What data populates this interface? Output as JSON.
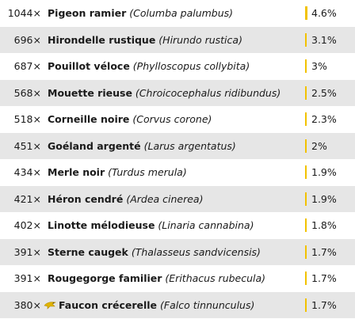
{
  "rows": [
    {
      "count": "1044×",
      "common": "Pigeon ramier",
      "latin": "(Columba palumbus)",
      "pct": "4.6%",
      "share": 0.046,
      "icon": ""
    },
    {
      "count": "696×",
      "common": "Hirondelle rustique",
      "latin": "(Hirundo rustica)",
      "pct": "3.1%",
      "share": 0.031,
      "icon": ""
    },
    {
      "count": "687×",
      "common": "Pouillot véloce",
      "latin": "(Phylloscopus collybita)",
      "pct": "3%",
      "share": 0.03,
      "icon": ""
    },
    {
      "count": "568×",
      "common": "Mouette rieuse",
      "latin": "(Chroicocephalus ridibundus)",
      "pct": "2.5%",
      "share": 0.025,
      "icon": ""
    },
    {
      "count": "518×",
      "common": "Corneille noire",
      "latin": "(Corvus corone)",
      "pct": "2.3%",
      "share": 0.023,
      "icon": ""
    },
    {
      "count": "451×",
      "common": "Goéland argenté",
      "latin": "(Larus argentatus)",
      "pct": "2%",
      "share": 0.02,
      "icon": ""
    },
    {
      "count": "434×",
      "common": "Merle noir",
      "latin": "(Turdus merula)",
      "pct": "1.9%",
      "share": 0.019,
      "icon": ""
    },
    {
      "count": "421×",
      "common": "Héron cendré",
      "latin": "(Ardea cinerea)",
      "pct": "1.9%",
      "share": 0.019,
      "icon": ""
    },
    {
      "count": "402×",
      "common": "Linotte mélodieuse",
      "latin": "(Linaria cannabina)",
      "pct": "1.8%",
      "share": 0.018,
      "icon": ""
    },
    {
      "count": "391×",
      "common": "Sterne caugek",
      "latin": "(Thalasseus sandvicensis)",
      "pct": "1.7%",
      "share": 0.017,
      "icon": ""
    },
    {
      "count": "391×",
      "common": "Rougegorge familier",
      "latin": "(Erithacus rubecula)",
      "pct": "1.7%",
      "share": 0.017,
      "icon": ""
    },
    {
      "count": "380×",
      "common": "Faucon crécerelle",
      "latin": "(Falco tinnunculus)",
      "pct": "1.7%",
      "share": 0.017,
      "icon": "raptor-icon"
    }
  ],
  "colors": {
    "bar": "#f2c200",
    "stripe": "#e6e6e6",
    "icon": "#e0b400"
  }
}
